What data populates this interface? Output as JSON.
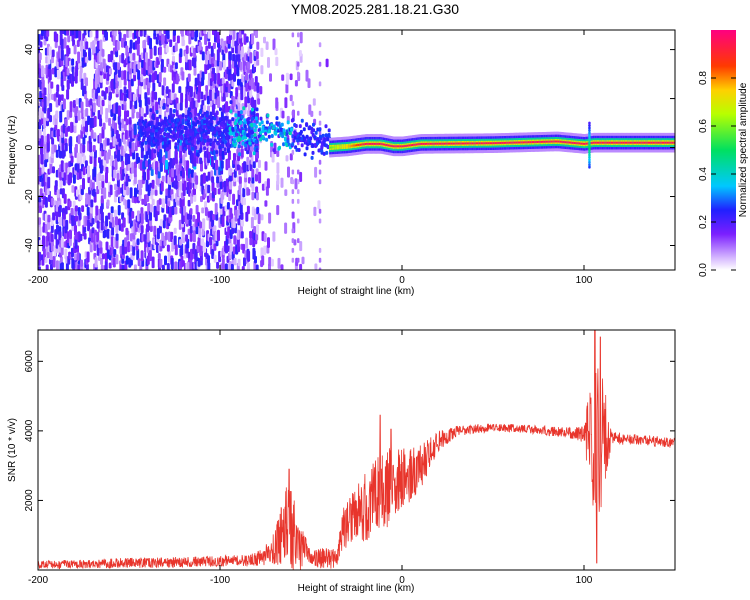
{
  "title": "YM08.2025.281.18.21.G30",
  "colors": {
    "background": "#ffffff",
    "axis": "#000000",
    "snr_line": "#e8352c"
  },
  "chart_data": [
    {
      "type": "heatmap",
      "name": "spectrogram",
      "xlabel": "Height of straight line (km)",
      "ylabel": "Frequency (Hz)",
      "xlim": [
        -200,
        150
      ],
      "ylim": [
        -50,
        48
      ],
      "xticks": [
        -200,
        -100,
        0,
        100
      ],
      "yticks": [
        -40,
        -20,
        0,
        20,
        40
      ],
      "xtick_labels": [
        "-200",
        "-100",
        "0",
        "100"
      ],
      "ytick_labels": [
        "-40",
        "-20",
        "0",
        "20",
        "40"
      ],
      "description_of_data": {
        "noise_region_km": [
          -200,
          -80
        ],
        "noise_amplitude_range": [
          0.0,
          0.25
        ],
        "dense_clusters_km": [
          -145,
          -95
        ],
        "transition_region_km": [
          -80,
          -40
        ],
        "signal_band_start_km": -40,
        "signal_frequency_hz": [
          [
            -40,
            0
          ],
          [
            -30,
            0.5
          ],
          [
            -20,
            1.5
          ],
          [
            -12,
            1.5
          ],
          [
            -5,
            0.5
          ],
          [
            0,
            0.5
          ],
          [
            10,
            1.5
          ],
          [
            50,
            1.8
          ],
          [
            85,
            2.5
          ],
          [
            100,
            1.5
          ],
          [
            105,
            2
          ],
          [
            150,
            2
          ]
        ],
        "signal_peak_amplitude": 0.95
      },
      "colorbar": {
        "label": "Normalized spectral amplitude",
        "range": [
          0.0,
          1.0
        ],
        "ticks": [
          0.0,
          0.2,
          0.4,
          0.6,
          0.8
        ],
        "tick_labels": [
          "0.0",
          "0.2",
          "0.4",
          "0.6",
          "0.8"
        ]
      }
    },
    {
      "type": "line",
      "name": "snr",
      "xlabel": "Height of straight line (km)",
      "ylabel": "SNR (10 * v/v)",
      "xlim": [
        -200,
        150
      ],
      "ylim": [
        0,
        6900
      ],
      "xticks": [
        -200,
        -100,
        0,
        100
      ],
      "yticks": [
        2000,
        4000,
        6000
      ],
      "xtick_labels": [
        "-200",
        "-100",
        "0",
        "100"
      ],
      "ytick_labels": [
        "2000",
        "4000",
        "6000"
      ],
      "envelope": [
        {
          "x": -200,
          "base": 150,
          "noise": 120
        },
        {
          "x": -150,
          "base": 200,
          "noise": 150
        },
        {
          "x": -100,
          "base": 250,
          "noise": 150
        },
        {
          "x": -80,
          "base": 300,
          "noise": 200
        },
        {
          "x": -70,
          "base": 600,
          "noise": 500
        },
        {
          "x": -62,
          "base": 1400,
          "noise": 1400
        },
        {
          "x": -56,
          "base": 700,
          "noise": 700
        },
        {
          "x": -50,
          "base": 300,
          "noise": 200
        },
        {
          "x": -45,
          "base": 350,
          "noise": 300
        },
        {
          "x": -36,
          "base": 300,
          "noise": 300
        },
        {
          "x": -33,
          "base": 1200,
          "noise": 700
        },
        {
          "x": -20,
          "base": 1800,
          "noise": 1000
        },
        {
          "x": -10,
          "base": 2300,
          "noise": 1200
        },
        {
          "x": 0,
          "base": 2600,
          "noise": 900
        },
        {
          "x": 10,
          "base": 3000,
          "noise": 700
        },
        {
          "x": 20,
          "base": 3700,
          "noise": 300
        },
        {
          "x": 30,
          "base": 4000,
          "noise": 150
        },
        {
          "x": 50,
          "base": 4100,
          "noise": 120
        },
        {
          "x": 70,
          "base": 4050,
          "noise": 120
        },
        {
          "x": 90,
          "base": 3950,
          "noise": 150
        },
        {
          "x": 100,
          "base": 3900,
          "noise": 250
        },
        {
          "x": 104,
          "base": 3800,
          "noise": 1800
        },
        {
          "x": 107,
          "base": 3800,
          "noise": 3000
        },
        {
          "x": 110,
          "base": 3800,
          "noise": 2000
        },
        {
          "x": 115,
          "base": 3800,
          "noise": 200
        },
        {
          "x": 130,
          "base": 3750,
          "noise": 150
        },
        {
          "x": 150,
          "base": 3650,
          "noise": 150
        }
      ],
      "spikes": [
        {
          "x": -62,
          "y": 2900
        },
        {
          "x": -12,
          "y": 4450
        },
        {
          "x": -6,
          "y": 4050
        },
        {
          "x": 106,
          "y": 6900
        },
        {
          "x": 107,
          "y": 200
        },
        {
          "x": 109,
          "y": 6700
        }
      ]
    }
  ]
}
